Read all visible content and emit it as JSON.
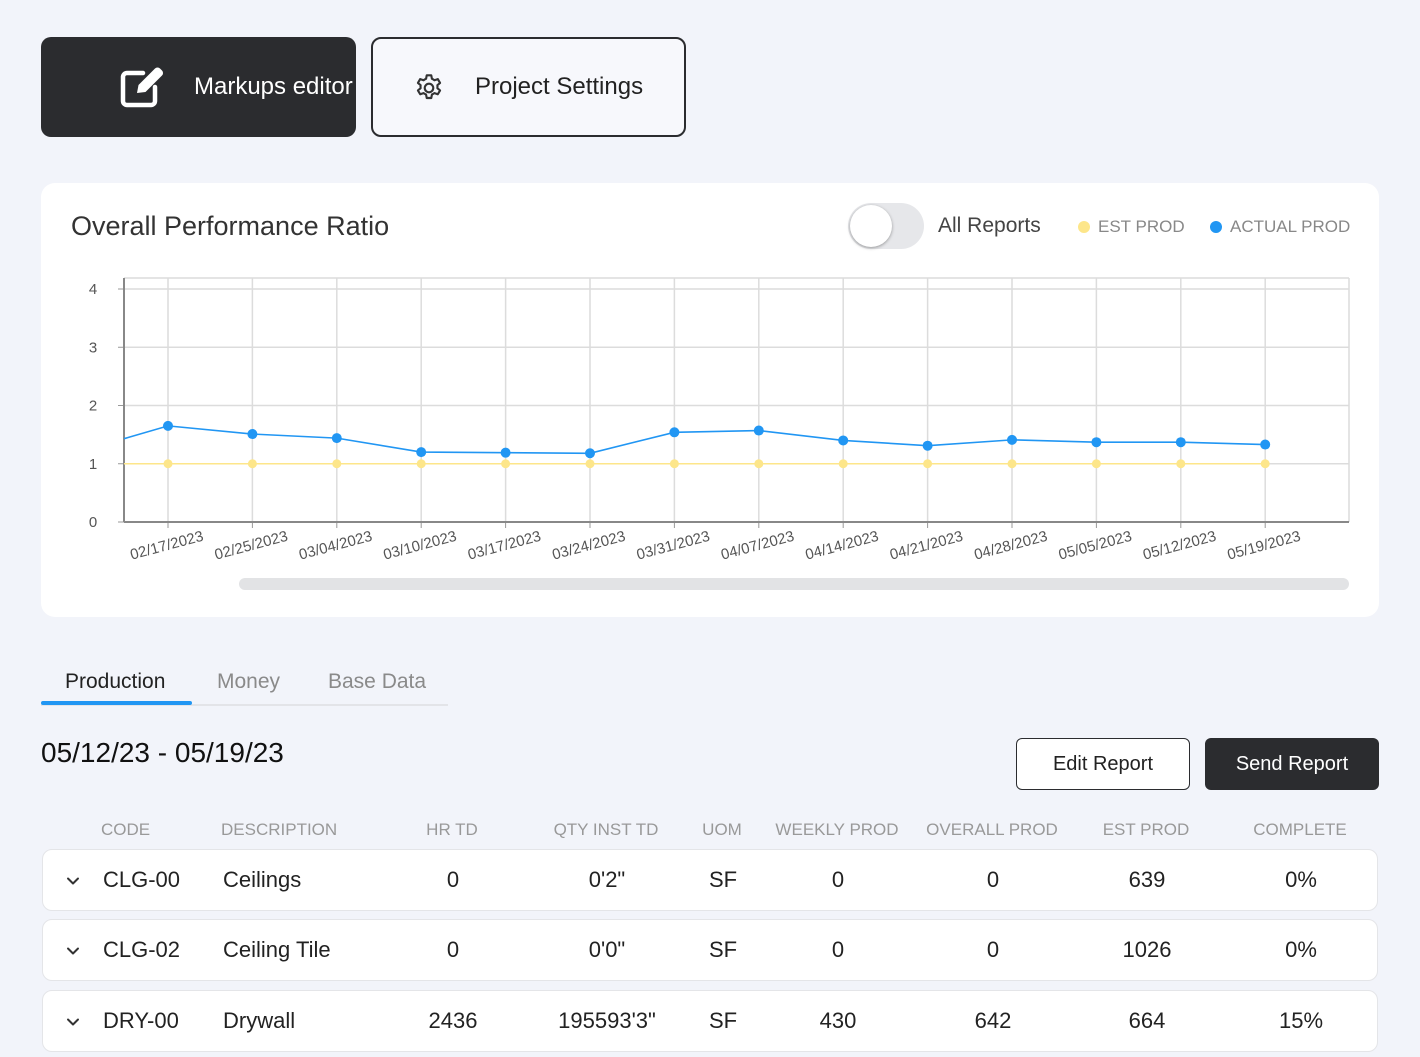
{
  "toolbar": {
    "markups_label": "Markups editor",
    "settings_label": "Project Settings"
  },
  "chart_card": {
    "title": "Overall Performance Ratio",
    "toggle_label": "All Reports",
    "toggle_on": false,
    "legend": {
      "est": {
        "label": "EST PROD",
        "color": "#fde68a"
      },
      "actual": {
        "label": "ACTUAL PROD",
        "color": "#2196f3"
      }
    }
  },
  "chart_data": {
    "type": "line",
    "title": "Overall Performance Ratio",
    "xlabel": "",
    "ylabel": "",
    "ylim": [
      0,
      4
    ],
    "yticks": [
      0,
      1,
      2,
      3,
      4
    ],
    "categories": [
      "02/17/2023",
      "02/25/2023",
      "03/04/2023",
      "03/10/2023",
      "03/17/2023",
      "03/24/2023",
      "03/31/2023",
      "04/07/2023",
      "04/14/2023",
      "04/21/2023",
      "04/28/2023",
      "05/05/2023",
      "05/12/2023",
      "05/19/2023"
    ],
    "series": [
      {
        "name": "EST PROD",
        "color": "#fde68a",
        "values": [
          1,
          1,
          1,
          1,
          1,
          1,
          1,
          1,
          1,
          1,
          1,
          1,
          1,
          1
        ]
      },
      {
        "name": "ACTUAL PROD",
        "color": "#2196f3",
        "values": [
          1.65,
          1.51,
          1.44,
          1.2,
          1.19,
          1.18,
          1.54,
          1.57,
          1.4,
          1.31,
          1.41,
          1.37,
          1.37,
          1.33
        ],
        "lead_in_value": 1.43
      }
    ],
    "grid": true
  },
  "tabs": [
    {
      "label": "Production",
      "active": true
    },
    {
      "label": "Money",
      "active": false
    },
    {
      "label": "Base Data",
      "active": false
    }
  ],
  "report": {
    "date_range": "05/12/23 - 05/19/23",
    "edit_label": "Edit Report",
    "send_label": "Send Report"
  },
  "table": {
    "columns": [
      "CODE",
      "DESCRIPTION",
      "HR TD",
      "QTY INST TD",
      "UOM",
      "WEEKLY PROD",
      "OVERALL PROD",
      "EST PROD",
      "COMPLETE"
    ],
    "rows": [
      {
        "code": "CLG-00",
        "description": "Ceilings",
        "hr_td": "0",
        "qty_inst_td": "0'2\"",
        "uom": "SF",
        "weekly_prod": "0",
        "overall_prod": "0",
        "est_prod": "639",
        "complete": "0%"
      },
      {
        "code": "CLG-02",
        "description": "Ceiling Tile",
        "hr_td": "0",
        "qty_inst_td": "0'0\"",
        "uom": "SF",
        "weekly_prod": "0",
        "overall_prod": "0",
        "est_prod": "1026",
        "complete": "0%"
      },
      {
        "code": "DRY-00",
        "description": "Drywall",
        "hr_td": "2436",
        "qty_inst_td": "195593'3\"",
        "uom": "SF",
        "weekly_prod": "430",
        "overall_prod": "642",
        "est_prod": "664",
        "complete": "15%"
      }
    ]
  }
}
